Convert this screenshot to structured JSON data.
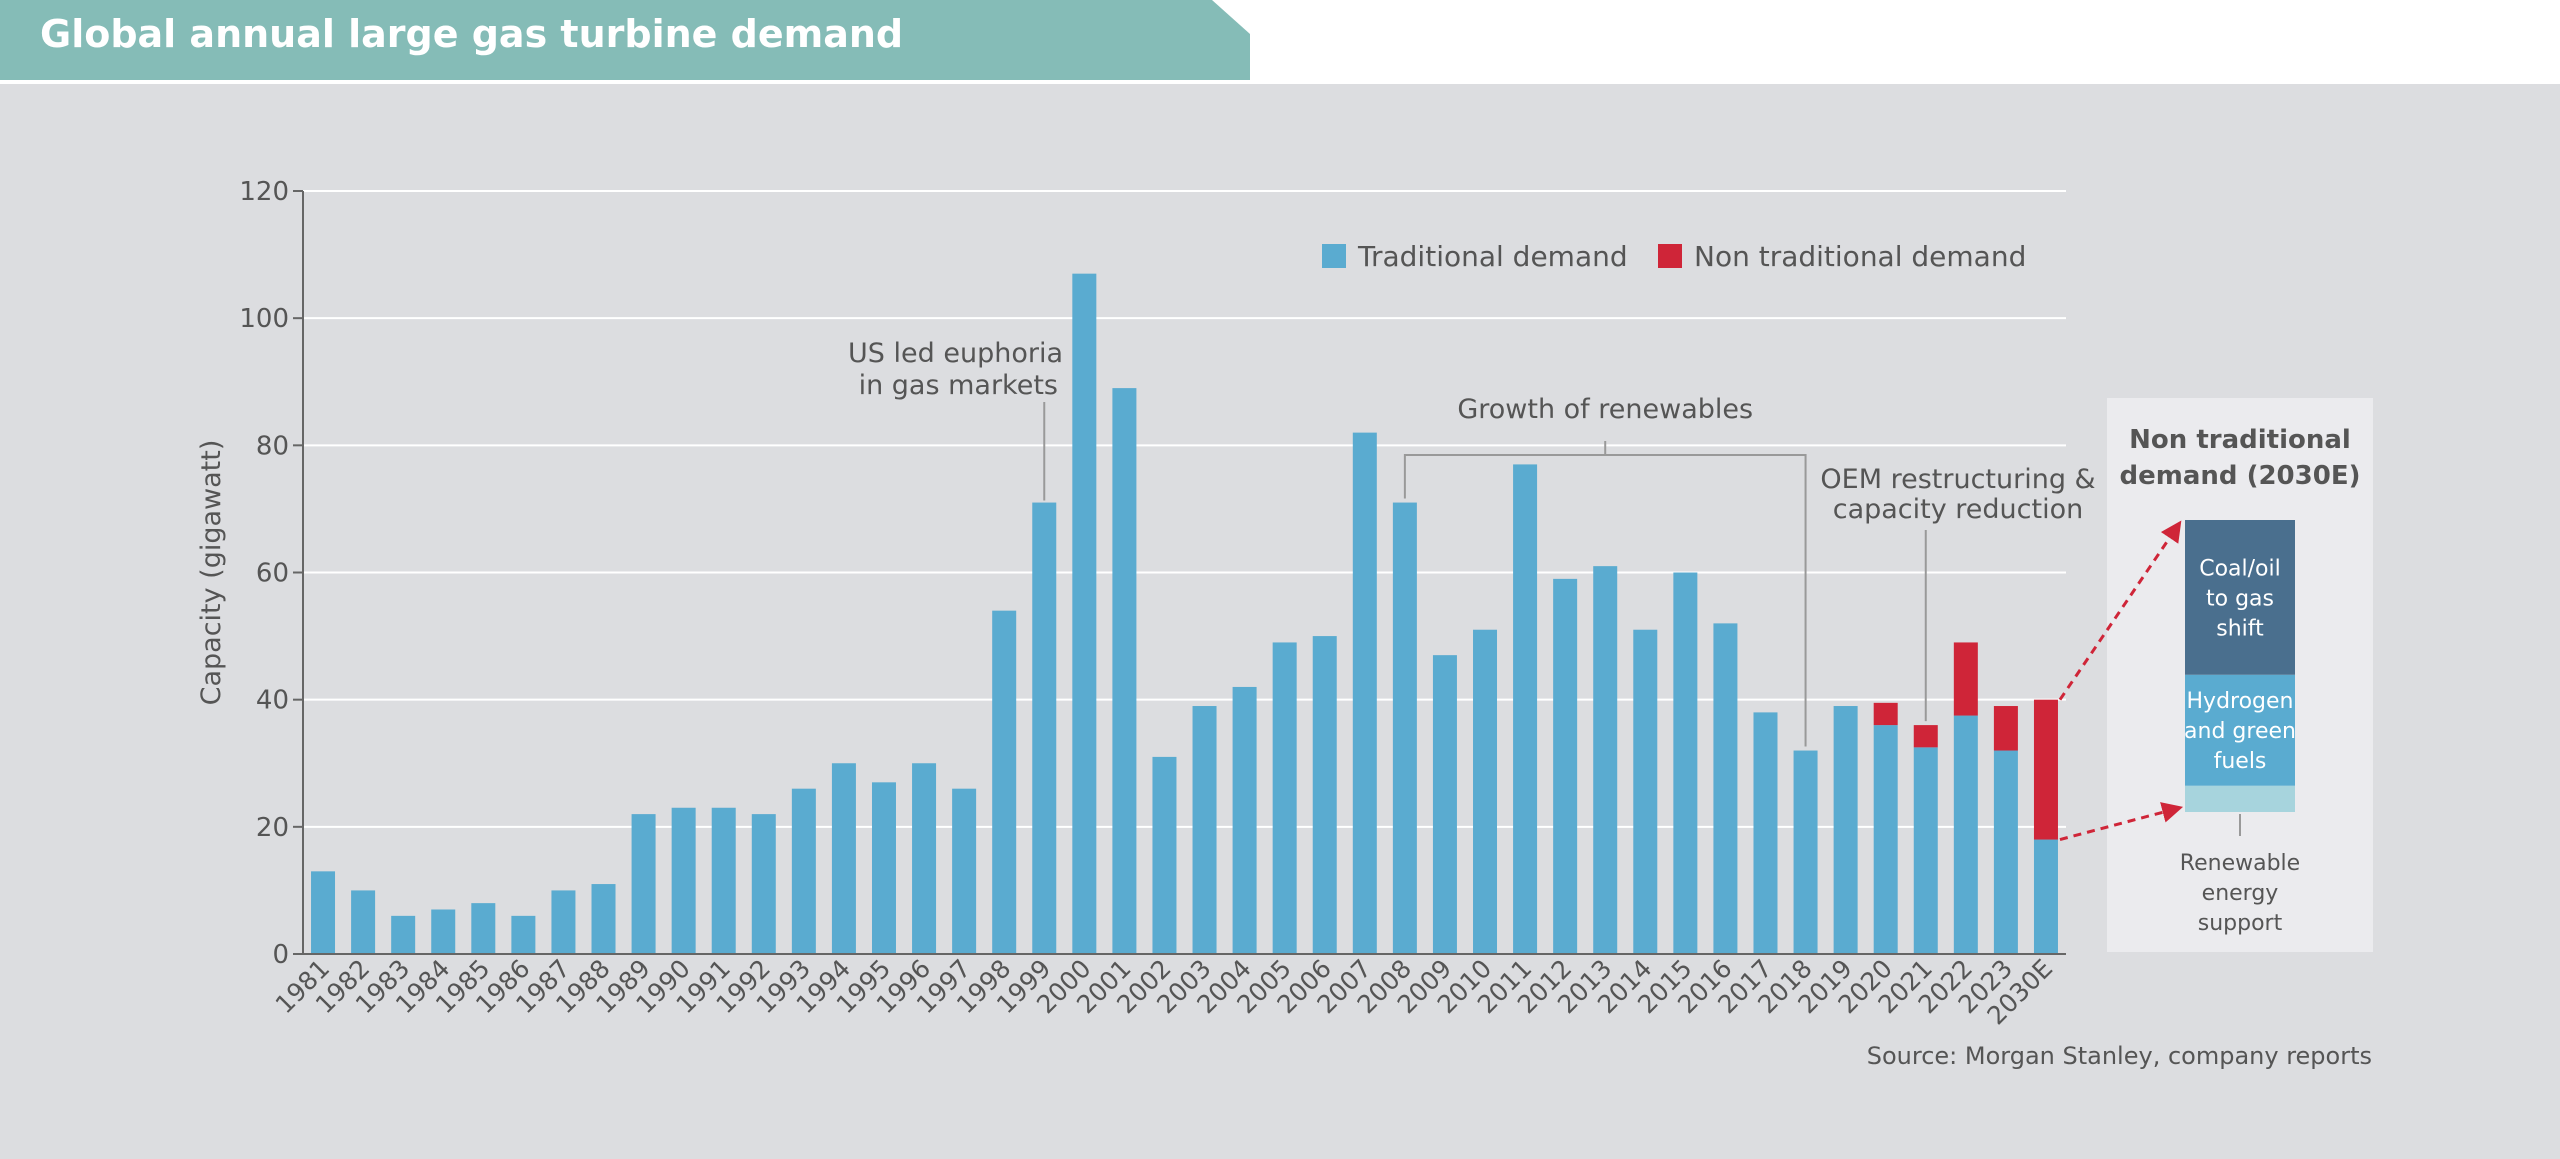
{
  "header": {
    "title": "Global annual large gas turbine demand"
  },
  "chart_data": {
    "type": "bar",
    "stacked": true,
    "ylabel": "Capacity (gigawatt)",
    "ylim": [
      0,
      120
    ],
    "yticks": [
      0,
      20,
      40,
      60,
      80,
      100,
      120
    ],
    "grid": true,
    "legend_position": "top-right",
    "categories": [
      "1981",
      "1982",
      "1983",
      "1984",
      "1985",
      "1986",
      "1987",
      "1988",
      "1989",
      "1990",
      "1991",
      "1992",
      "1993",
      "1994",
      "1995",
      "1996",
      "1997",
      "1998",
      "1999",
      "2000",
      "2001",
      "2002",
      "2003",
      "2004",
      "2005",
      "2006",
      "2007",
      "2008",
      "2009",
      "2010",
      "2011",
      "2012",
      "2013",
      "2014",
      "2015",
      "2016",
      "2017",
      "2018",
      "2019",
      "2020",
      "2021",
      "2022",
      "2023",
      "2030E"
    ],
    "series": [
      {
        "name": "Traditional demand",
        "color": "#5aabd0",
        "values": [
          13,
          10,
          6,
          7,
          8,
          6,
          10,
          11,
          22,
          23,
          23,
          22,
          26,
          30,
          27,
          30,
          26,
          54,
          71,
          107,
          89,
          31,
          39,
          42,
          49,
          50,
          82,
          71,
          47,
          51,
          77,
          59,
          61,
          51,
          60,
          52,
          38,
          32,
          39,
          36,
          32.5,
          37.5,
          32,
          18
        ]
      },
      {
        "name": "Non traditional demand",
        "color": "#cf2538",
        "values": [
          0,
          0,
          0,
          0,
          0,
          0,
          0,
          0,
          0,
          0,
          0,
          0,
          0,
          0,
          0,
          0,
          0,
          0,
          0,
          0,
          0,
          0,
          0,
          0,
          0,
          0,
          0,
          0,
          0,
          0,
          0,
          0,
          0,
          0,
          0,
          0,
          0,
          0,
          0,
          3.5,
          3.5,
          11.5,
          7,
          22
        ]
      }
    ],
    "annotations": [
      {
        "text_lines": [
          "US led euphoria",
          "in gas markets"
        ],
        "target": "1999"
      },
      {
        "text": "Growth of renewables",
        "range": [
          "2008",
          "2018"
        ]
      },
      {
        "text_lines": [
          "OEM restructuring &",
          "capacity reduction"
        ],
        "target": "2021"
      }
    ],
    "inset": {
      "title_lines": [
        "Non traditional",
        "demand (2030E)"
      ],
      "segments": [
        {
          "lines": [
            "Renewable",
            "energy",
            "support"
          ],
          "share": 0.09,
          "color": "#a7d4dd"
        },
        {
          "lines": [
            "Hydrogen",
            "and green",
            "fuels"
          ],
          "share": 0.38,
          "color": "#5aabd0"
        },
        {
          "lines": [
            "Coal/oil",
            "to gas",
            "shift"
          ],
          "share": 0.53,
          "color": "#4a6f8e"
        }
      ]
    }
  },
  "source": "Source: Morgan Stanley, company reports"
}
